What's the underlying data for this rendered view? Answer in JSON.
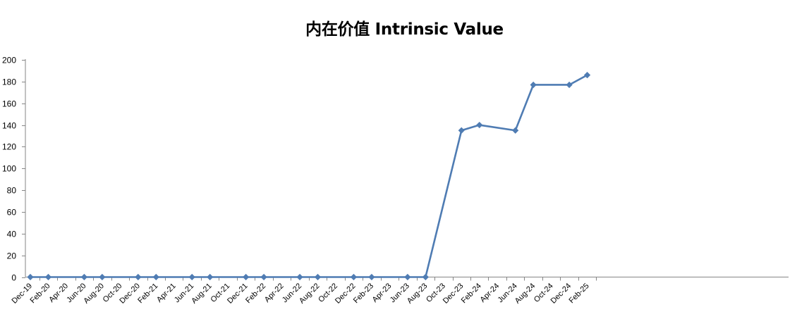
{
  "chart_data": {
    "type": "line",
    "title": "内在价值 Intrinsic Value",
    "xlabel": "",
    "ylabel": "",
    "ylim": [
      0,
      200
    ],
    "yticks": [
      0,
      20,
      40,
      60,
      80,
      100,
      120,
      140,
      160,
      180,
      200
    ],
    "grid": false,
    "legend": "none",
    "categories": [
      "Dec-19",
      "Feb-20",
      "Apr-20",
      "Jun-20",
      "Aug-20",
      "Oct-20",
      "Dec-20",
      "Feb-21",
      "Apr-21",
      "Jun-21",
      "Aug-21",
      "Oct-21",
      "Dec-21",
      "Feb-22",
      "Apr-22",
      "Jun-22",
      "Aug-22",
      "Oct-22",
      "Dec-22",
      "Feb-23",
      "Apr-23",
      "Jun-23",
      "Aug-23",
      "Oct-23",
      "Dec-23",
      "Feb-24",
      "Apr-24",
      "Jun-24",
      "Aug-24",
      "Oct-24",
      "Dec-24",
      "Feb-25"
    ],
    "series": [
      {
        "color": "#4f7cb3",
        "points": [
          {
            "x": "Dec-19",
            "y": 0
          },
          {
            "x": "Feb-20",
            "y": 0
          },
          {
            "x": "Jun-20",
            "y": 0
          },
          {
            "x": "Aug-20",
            "y": 0
          },
          {
            "x": "Dec-20",
            "y": 0
          },
          {
            "x": "Feb-21",
            "y": 0
          },
          {
            "x": "Jun-21",
            "y": 0
          },
          {
            "x": "Aug-21",
            "y": 0
          },
          {
            "x": "Dec-21",
            "y": 0
          },
          {
            "x": "Feb-22",
            "y": 0
          },
          {
            "x": "Jun-22",
            "y": 0
          },
          {
            "x": "Aug-22",
            "y": 0
          },
          {
            "x": "Dec-22",
            "y": 0
          },
          {
            "x": "Feb-23",
            "y": 0
          },
          {
            "x": "Jun-23",
            "y": 0
          },
          {
            "x": "Aug-23",
            "y": 0
          },
          {
            "x": "Dec-23",
            "y": 135
          },
          {
            "x": "Feb-24",
            "y": 140
          },
          {
            "x": "Jun-24",
            "y": 135
          },
          {
            "x": "Aug-24",
            "y": 177
          },
          {
            "x": "Dec-24",
            "y": 177
          },
          {
            "x": "Feb-25",
            "y": 186
          }
        ]
      }
    ]
  }
}
